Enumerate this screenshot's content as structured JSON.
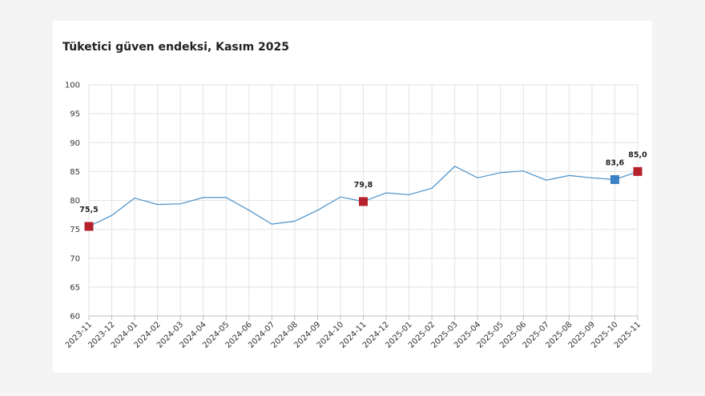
{
  "chart_data": {
    "type": "line",
    "title": "Tüketici güven endeksi, Kasım 2025",
    "xlabel": "",
    "ylabel": "",
    "ylim": [
      60,
      100
    ],
    "yticks": [
      "60",
      "65",
      "70",
      "75",
      "80",
      "85",
      "90",
      "95",
      "100"
    ],
    "grid": true,
    "categories": [
      "2023-11",
      "2023-12",
      "2024-01",
      "2024-02",
      "2024-03",
      "2024-04",
      "2024-05",
      "2024-06",
      "2024-07",
      "2024-08",
      "2024-09",
      "2024-10",
      "2024-11",
      "2024-12",
      "2025-01",
      "2025-02",
      "2025-03",
      "2025-04",
      "2025-05",
      "2025-06",
      "2025-07",
      "2025-08",
      "2025-09",
      "2025-10",
      "2025-11"
    ],
    "series": [
      {
        "name": "Tüketici güven endeksi",
        "color": "#4a90c8",
        "values": [
          75.5,
          77.4,
          80.4,
          79.3,
          79.4,
          80.5,
          80.5,
          78.3,
          75.9,
          76.4,
          78.3,
          80.6,
          79.8,
          81.3,
          81.0,
          82.1,
          85.9,
          83.9,
          84.8,
          85.1,
          83.5,
          84.3,
          83.9,
          83.6,
          85.0
        ]
      }
    ],
    "highlights": [
      {
        "index": 0,
        "label": "75,5",
        "color": "#b5222b"
      },
      {
        "index": 12,
        "label": "79,8",
        "color": "#b5222b"
      },
      {
        "index": 23,
        "label": "83,6",
        "color": "#3a82c4"
      },
      {
        "index": 24,
        "label": "85,0",
        "color": "#b5222b"
      }
    ]
  }
}
